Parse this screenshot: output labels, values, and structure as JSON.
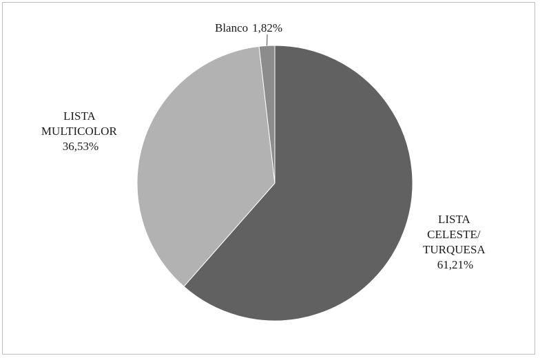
{
  "chart_data": {
    "type": "pie",
    "title": "",
    "slices": [
      {
        "label_lines": [
          "LISTA",
          "CELESTE/",
          "TURQUESA"
        ],
        "value_text": "61,21%",
        "value": 61.21,
        "color": "#616161"
      },
      {
        "label_lines": [
          "LISTA",
          "MULTICOLOR"
        ],
        "value_text": "36,53%",
        "value": 36.53,
        "color": "#b2b2b2"
      },
      {
        "label_lines": [
          "Blanco"
        ],
        "value_text": "1,82%",
        "value": 1.82,
        "color": "#8c8c8c"
      }
    ],
    "legend": "none",
    "slice_border_color": "#ffffff"
  }
}
